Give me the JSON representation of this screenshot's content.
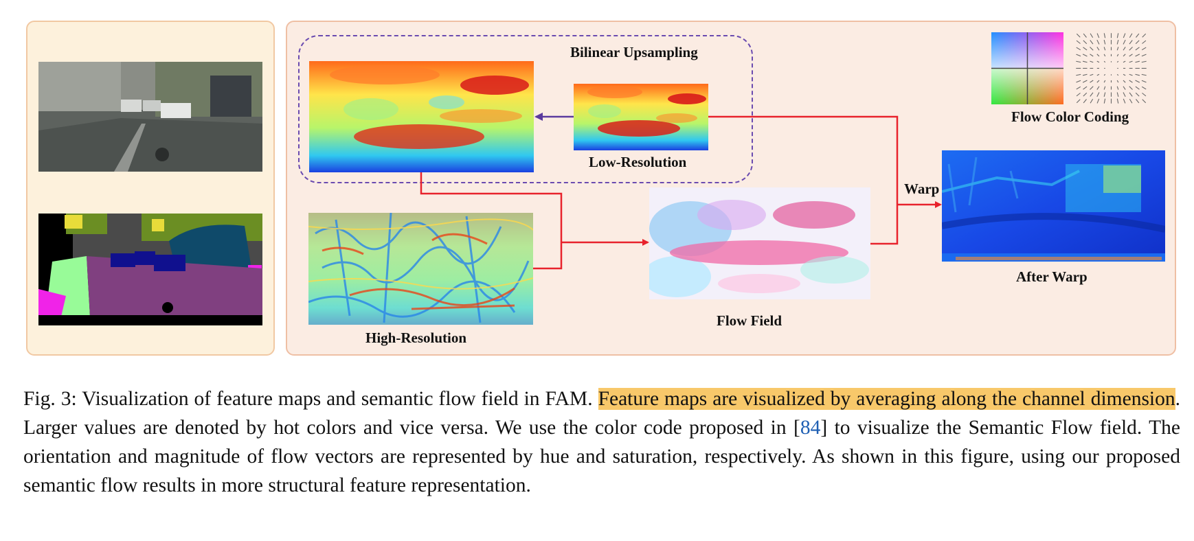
{
  "figure": {
    "labels": {
      "bilinear": "Bilinear Upsampling",
      "low_res": "Low-Resolution",
      "high_res": "High-Resolution",
      "flow_field": "Flow Field",
      "warp": "Warp",
      "after_warp": "After Warp",
      "flow_color_coding": "Flow Color Coding"
    },
    "colors": {
      "arrow_red": "#e8222c",
      "arrow_purple": "#5b3a9e",
      "dashed_box": "#6a4bb0"
    }
  },
  "caption": {
    "fig_label": "Fig. 3: Visualization of feature maps and semantic flow field in FAM. ",
    "highlighted": "Feature maps are visualized by averaging along the channel dimension",
    "text_2": ". Larger values are denoted by hot colors and vice versa. We use the color code proposed in [",
    "ref": "84",
    "text_3": "] to visualize the Semantic Flow field. The orientation and magnitude of flow vectors are represented by hue and saturation, respectively. As shown in this figure, using our proposed semantic flow results in more structural feature representation."
  }
}
